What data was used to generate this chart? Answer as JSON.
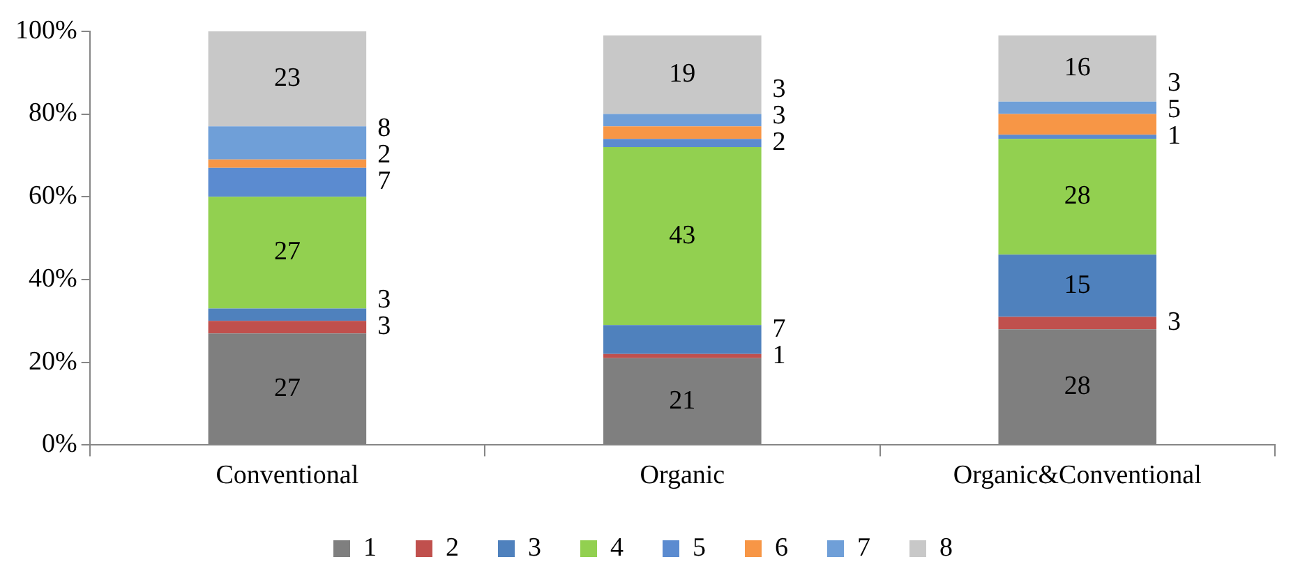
{
  "chart_data": {
    "type": "bar",
    "stacked": true,
    "categories": [
      "Conventional",
      "Organic",
      "Organic&Conventional"
    ],
    "series": [
      {
        "name": "1",
        "color": "#7f7f7f",
        "values": [
          27,
          21,
          28
        ]
      },
      {
        "name": "2",
        "color": "#c0504d",
        "values": [
          3,
          1,
          3
        ]
      },
      {
        "name": "3",
        "color": "#4f81bd",
        "values": [
          3,
          7,
          15
        ]
      },
      {
        "name": "4",
        "color": "#92d050",
        "values": [
          27,
          43,
          28
        ]
      },
      {
        "name": "5",
        "color": "#5b8bd0",
        "values": [
          7,
          2,
          1
        ]
      },
      {
        "name": "6",
        "color": "#f79646",
        "values": [
          2,
          3,
          5
        ]
      },
      {
        "name": "7",
        "color": "#6f9fd8",
        "values": [
          8,
          3,
          3
        ]
      },
      {
        "name": "8",
        "color": "#c8c8c8",
        "values": [
          23,
          19,
          16
        ]
      }
    ],
    "ylim": [
      0,
      100
    ],
    "yticks": [
      {
        "value": 0,
        "label": "0%"
      },
      {
        "value": 20,
        "label": "20%"
      },
      {
        "value": 40,
        "label": "40%"
      },
      {
        "value": 60,
        "label": "60%"
      },
      {
        "value": 80,
        "label": "80%"
      },
      {
        "value": 100,
        "label": "100%"
      }
    ],
    "data_labels": true,
    "grid": false,
    "legend": "bottom"
  }
}
